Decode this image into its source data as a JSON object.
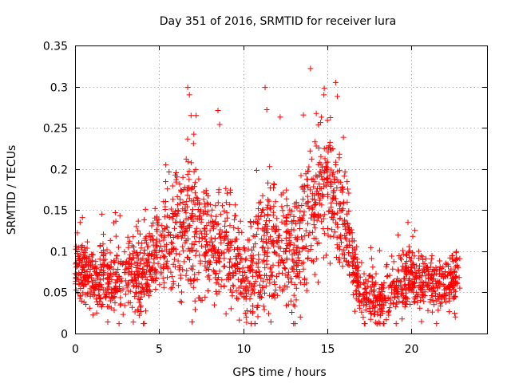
{
  "chart_data": {
    "type": "scatter",
    "title": "Day 351 of 2016, SRMTID for receiver lura",
    "xlabel": "GPS time / hours",
    "ylabel": "SRMTID / TECUs",
    "xlim": [
      0,
      24.5
    ],
    "ylim": [
      0,
      0.35
    ],
    "grid": true,
    "marker": "+",
    "series_color": "#ff0000",
    "x_ticks": [
      0,
      5,
      10,
      15,
      20
    ],
    "x_tick_labels": [
      "0",
      "5",
      "10",
      "15",
      "20"
    ],
    "y_ticks": [
      0,
      0.05,
      0.1,
      0.15,
      0.2,
      0.25,
      0.3,
      0.35
    ],
    "y_tick_labels": [
      "0",
      "0.05",
      "0.1",
      "0.15",
      "0.2",
      "0.25",
      "0.3",
      "0.35"
    ],
    "x_range_data": [
      0,
      22.9
    ],
    "notable_points": [
      {
        "x": 0.3,
        "y": 0.135
      },
      {
        "x": 1.6,
        "y": 0.145
      },
      {
        "x": 5.4,
        "y": 0.205
      },
      {
        "x": 6.7,
        "y": 0.299
      },
      {
        "x": 6.8,
        "y": 0.29
      },
      {
        "x": 6.9,
        "y": 0.265
      },
      {
        "x": 7.2,
        "y": 0.265
      },
      {
        "x": 8.5,
        "y": 0.271
      },
      {
        "x": 8.6,
        "y": 0.254
      },
      {
        "x": 11.3,
        "y": 0.299
      },
      {
        "x": 11.4,
        "y": 0.272
      },
      {
        "x": 12.2,
        "y": 0.263
      },
      {
        "x": 13.4,
        "y": 0.02
      },
      {
        "x": 14.0,
        "y": 0.322
      },
      {
        "x": 14.8,
        "y": 0.29
      },
      {
        "x": 15.5,
        "y": 0.305
      },
      {
        "x": 15.6,
        "y": 0.288
      },
      {
        "x": 17.2,
        "y": 0.012
      },
      {
        "x": 19.8,
        "y": 0.135
      },
      {
        "x": 21.5,
        "y": 0.012
      }
    ],
    "trend": {
      "x": [
        0,
        1,
        2,
        3,
        4,
        5,
        6,
        7,
        8,
        9,
        10,
        11,
        12,
        13,
        14,
        15,
        16,
        16.5,
        17,
        18,
        19,
        20,
        21,
        22,
        22.9
      ],
      "y": [
        0.075,
        0.07,
        0.065,
        0.07,
        0.07,
        0.1,
        0.12,
        0.14,
        0.105,
        0.1,
        0.07,
        0.09,
        0.12,
        0.09,
        0.15,
        0.18,
        0.14,
        0.085,
        0.045,
        0.04,
        0.05,
        0.065,
        0.06,
        0.06,
        0.07
      ]
    },
    "spread": {
      "x": [
        0,
        5,
        6,
        7,
        8,
        9,
        10,
        11,
        12,
        13,
        14,
        15,
        16,
        16.5,
        17,
        20,
        22.9
      ],
      "y": [
        0.02,
        0.025,
        0.035,
        0.05,
        0.03,
        0.03,
        0.03,
        0.04,
        0.04,
        0.035,
        0.04,
        0.04,
        0.035,
        0.02,
        0.015,
        0.018,
        0.015
      ]
    },
    "density_points_per_hour": 100,
    "random_seed": 351
  }
}
